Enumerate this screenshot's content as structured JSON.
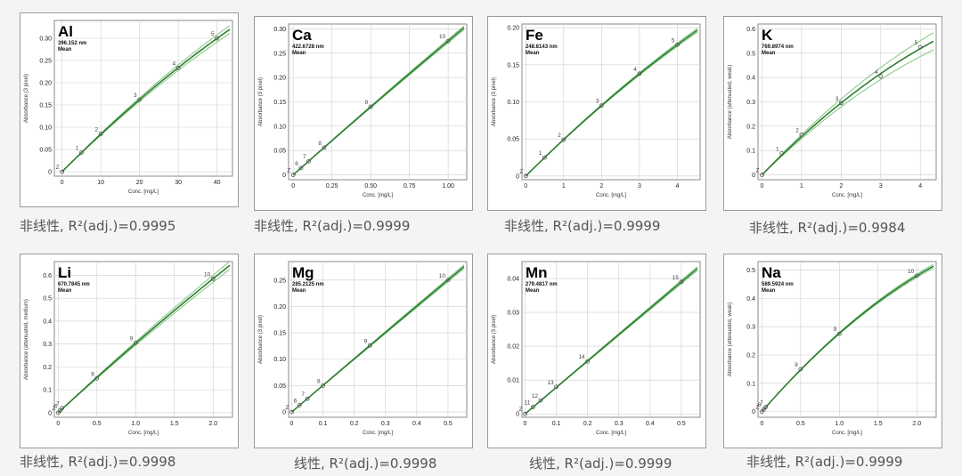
{
  "theme": {
    "background": "#f4f4f4",
    "fit_line": "#2f7d32",
    "band": "#7fc77f",
    "point": "#555555",
    "grid": "#cfcfcf"
  },
  "chart_data": [
    {
      "type": "scatter",
      "element": "Al",
      "wavelength": "396.152 nm",
      "stat": "Mean",
      "xlabel": "Conc. [mg/L]",
      "ylabel": "Absorbance (3 pixel)",
      "xlim": [
        -2,
        44
      ],
      "ylim": [
        -0.01,
        0.34
      ],
      "xticks": [
        0,
        10,
        20,
        30,
        40
      ],
      "xtick_labels": [
        "0",
        "10",
        "20",
        "30",
        "40"
      ],
      "yticks": [
        0,
        0.05,
        0.1,
        0.15,
        0.2,
        0.25,
        0.3
      ],
      "ytick_labels": [
        "0",
        "0.05",
        "0.10",
        "0.15",
        "0.20",
        "0.25",
        "0.30"
      ],
      "points": [
        {
          "label": "Z",
          "x": 0,
          "y": 0
        },
        {
          "label": "1",
          "x": 5,
          "y": 0.043
        },
        {
          "label": "2",
          "x": 10,
          "y": 0.085
        },
        {
          "label": "3",
          "x": 20,
          "y": 0.162
        },
        {
          "label": "4",
          "x": 30,
          "y": 0.233
        },
        {
          "label": "5",
          "x": 40,
          "y": 0.3
        }
      ],
      "band": "narrow",
      "caption": "非线性, R²(adj.)=0.9995"
    },
    {
      "type": "scatter",
      "element": "Ca",
      "wavelength": "422.6728 nm",
      "stat": "Mean",
      "xlabel": "Conc. [mg/L]",
      "ylabel": "Absorbance (3 pixel)",
      "xlim": [
        -0.03,
        1.12
      ],
      "ylim": [
        -0.01,
        0.31
      ],
      "xticks": [
        0,
        0.25,
        0.5,
        0.75,
        1.0
      ],
      "xtick_labels": [
        "0",
        "0.25",
        "0.50",
        "0.75",
        "1.00"
      ],
      "yticks": [
        0,
        0.05,
        0.1,
        0.15,
        0.2,
        0.25,
        0.3
      ],
      "ytick_labels": [
        "0",
        "0.05",
        "0.10",
        "0.15",
        "0.20",
        "0.25",
        "0.30"
      ],
      "points": [
        {
          "label": "Z",
          "x": 0,
          "y": 0
        },
        {
          "label": "6",
          "x": 0.05,
          "y": 0.014
        },
        {
          "label": "7",
          "x": 0.1,
          "y": 0.028
        },
        {
          "label": "8",
          "x": 0.2,
          "y": 0.056
        },
        {
          "label": "9",
          "x": 0.5,
          "y": 0.14
        },
        {
          "label": "10",
          "x": 1.0,
          "y": 0.275
        }
      ],
      "band": "none",
      "caption": "非线性, R²(adj.)=0.9999"
    },
    {
      "type": "scatter",
      "element": "Fe",
      "wavelength": "248.8143 nm",
      "stat": "Mean",
      "xlabel": "Conc. [mg/L]",
      "ylabel": "Absorbance (3 pixel)",
      "xlim": [
        -0.1,
        4.6
      ],
      "ylim": [
        -0.005,
        0.205
      ],
      "xticks": [
        0,
        1,
        2,
        3,
        4
      ],
      "xtick_labels": [
        "0",
        "1",
        "2",
        "3",
        "4"
      ],
      "yticks": [
        0,
        0.05,
        0.1,
        0.15,
        0.2
      ],
      "ytick_labels": [
        "0",
        "0.05",
        "0.10",
        "0.15",
        "0.20"
      ],
      "points": [
        {
          "label": "Z",
          "x": 0,
          "y": 0
        },
        {
          "label": "1",
          "x": 0.5,
          "y": 0.025
        },
        {
          "label": "2",
          "x": 1,
          "y": 0.049
        },
        {
          "label": "3",
          "x": 2,
          "y": 0.095
        },
        {
          "label": "4",
          "x": 3,
          "y": 0.138
        },
        {
          "label": "5",
          "x": 4,
          "y": 0.177
        }
      ],
      "band": "none",
      "caption": "非线性, R²(adj.)=0.9999"
    },
    {
      "type": "scatter",
      "element": "K",
      "wavelength": "769.8974 nm",
      "stat": "Mean",
      "xlabel": "Conc. [mg/L]",
      "ylabel": "Absorbance (attenuated, weak)",
      "xlim": [
        -0.1,
        4.4
      ],
      "ylim": [
        -0.02,
        0.62
      ],
      "xticks": [
        0,
        1,
        2,
        3,
        4
      ],
      "xtick_labels": [
        "0",
        "1",
        "2",
        "3",
        "4"
      ],
      "yticks": [
        0,
        0.1,
        0.2,
        0.3,
        0.4,
        0.5,
        0.6
      ],
      "ytick_labels": [
        "0",
        "0.1",
        "0.2",
        "0.3",
        "0.4",
        "0.5",
        "0.6"
      ],
      "points": [
        {
          "label": "Z",
          "x": 0,
          "y": 0
        },
        {
          "label": "1",
          "x": 0.5,
          "y": 0.088
        },
        {
          "label": "2",
          "x": 1,
          "y": 0.165
        },
        {
          "label": "3",
          "x": 2,
          "y": 0.295
        },
        {
          "label": "4",
          "x": 3,
          "y": 0.405
        },
        {
          "label": "5",
          "x": 4,
          "y": 0.525
        }
      ],
      "band": "wide",
      "caption": "非线性, R²(adj.)=0.9984"
    },
    {
      "type": "scatter",
      "element": "Li",
      "wavelength": "670.7845 nm",
      "stat": "Mean",
      "xlabel": "Conc. [mg/L]",
      "ylabel": "Absorbance (attenuated, medium)",
      "xlim": [
        -0.05,
        2.25
      ],
      "ylim": [
        -0.02,
        0.66
      ],
      "xticks": [
        0,
        0.5,
        1.0,
        1.5,
        2.0
      ],
      "xtick_labels": [
        "0",
        "0.5",
        "1.0",
        "1.5",
        "2.0"
      ],
      "yticks": [
        0,
        0.1,
        0.2,
        0.3,
        0.4,
        0.5,
        0.6
      ],
      "ytick_labels": [
        "0",
        "0.1",
        "0.2",
        "0.3",
        "0.4",
        "0.5",
        "0.6"
      ],
      "points": [
        {
          "label": "Z",
          "x": 0,
          "y": 0
        },
        {
          "label": "6",
          "x": 0.025,
          "y": 0.01
        },
        {
          "label": "7",
          "x": 0.05,
          "y": 0.02
        },
        {
          "label": "8",
          "x": 0.5,
          "y": 0.15
        },
        {
          "label": "9",
          "x": 1.0,
          "y": 0.305
        },
        {
          "label": "10",
          "x": 2.0,
          "y": 0.585
        }
      ],
      "band": "narrow",
      "caption": "非线性, R²(adj.)=0.9998"
    },
    {
      "type": "scatter",
      "element": "Mg",
      "wavelength": "285.2125 nm",
      "stat": "Mean",
      "xlabel": "Conc. [mg/L]",
      "ylabel": "Absorbance (3 pixel)",
      "xlim": [
        -0.01,
        0.56
      ],
      "ylim": [
        -0.01,
        0.285
      ],
      "xticks": [
        0,
        0.1,
        0.2,
        0.3,
        0.4,
        0.5
      ],
      "xtick_labels": [
        "0",
        "0.1",
        "0.2",
        "0.3",
        "0.4",
        "0.5"
      ],
      "yticks": [
        0,
        0.05,
        0.1,
        0.15,
        0.2,
        0.25
      ],
      "ytick_labels": [
        "0",
        "0.05",
        "0.10",
        "0.15",
        "0.20",
        "0.25"
      ],
      "points": [
        {
          "label": "Z",
          "x": 0,
          "y": 0
        },
        {
          "label": "6",
          "x": 0.025,
          "y": 0.013
        },
        {
          "label": "7",
          "x": 0.05,
          "y": 0.025
        },
        {
          "label": "8",
          "x": 0.1,
          "y": 0.05
        },
        {
          "label": "9",
          "x": 0.25,
          "y": 0.126
        },
        {
          "label": "10",
          "x": 0.5,
          "y": 0.25
        }
      ],
      "band": "none",
      "caption": "线性, R²(adj.)=0.9998"
    },
    {
      "type": "scatter",
      "element": "Mn",
      "wavelength": "279.4817 nm",
      "stat": "Mean",
      "xlabel": "Conc. [mg/L]",
      "ylabel": "Absorbance (3 pixel)",
      "xlim": [
        -0.01,
        0.56
      ],
      "ylim": [
        -0.001,
        0.045
      ],
      "xticks": [
        0,
        0.1,
        0.2,
        0.3,
        0.4,
        0.5
      ],
      "xtick_labels": [
        "0",
        "0.1",
        "0.2",
        "0.3",
        "0.4",
        "0.5"
      ],
      "yticks": [
        0,
        0.01,
        0.02,
        0.03,
        0.04
      ],
      "ytick_labels": [
        "0",
        "0.01",
        "0.02",
        "0.03",
        "0.04"
      ],
      "points": [
        {
          "label": "Z",
          "x": 0,
          "y": 0
        },
        {
          "label": "11",
          "x": 0.025,
          "y": 0.002
        },
        {
          "label": "12",
          "x": 0.05,
          "y": 0.004
        },
        {
          "label": "13",
          "x": 0.1,
          "y": 0.008
        },
        {
          "label": "14",
          "x": 0.2,
          "y": 0.0155
        },
        {
          "label": "15",
          "x": 0.5,
          "y": 0.039
        }
      ],
      "band": "none",
      "caption": "线性, R²(adj.)=0.9999"
    },
    {
      "type": "scatter",
      "element": "Na",
      "wavelength": "589.5924 nm",
      "stat": "Mean",
      "xlabel": "Conc. [mg/L]",
      "ylabel": "Absorbance (attenuated, weak)",
      "xlim": [
        -0.05,
        2.25
      ],
      "ylim": [
        -0.02,
        0.53
      ],
      "xticks": [
        0,
        0.5,
        1.0,
        1.5,
        2.0
      ],
      "xtick_labels": [
        "0",
        "0.5",
        "1.0",
        "1.5",
        "2.0"
      ],
      "yticks": [
        0,
        0.1,
        0.2,
        0.3,
        0.4,
        0.5
      ],
      "ytick_labels": [
        "0",
        "0.1",
        "0.2",
        "0.3",
        "0.4",
        "0.5"
      ],
      "points": [
        {
          "label": "Z",
          "x": 0,
          "y": 0
        },
        {
          "label": "6",
          "x": 0.025,
          "y": 0.008
        },
        {
          "label": "7",
          "x": 0.05,
          "y": 0.016
        },
        {
          "label": "8",
          "x": 0.5,
          "y": 0.15
        },
        {
          "label": "9",
          "x": 1.0,
          "y": 0.275
        },
        {
          "label": "10",
          "x": 2.0,
          "y": 0.48
        }
      ],
      "band": "none",
      "caption": "非线性, R²(adj.)=0.9999"
    }
  ]
}
